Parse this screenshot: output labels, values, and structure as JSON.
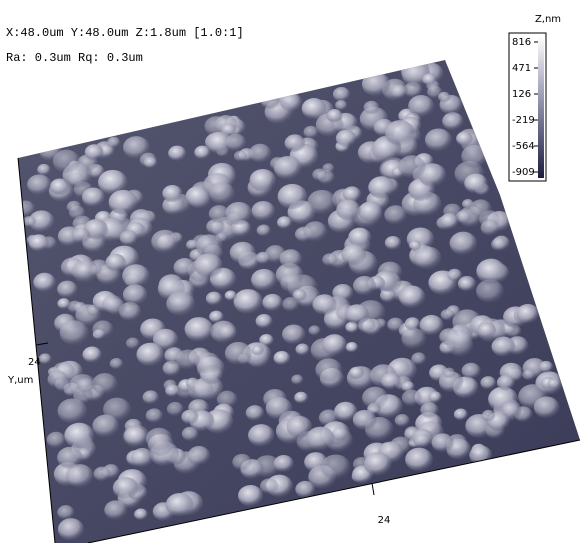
{
  "info": {
    "line1": "X:48.0um  Y:48.0um  Z:1.8um [1.0:1]",
    "line2": "Ra: 0.3um  Rq: 0.3um"
  },
  "colorbar": {
    "title": "Z,nm",
    "ticks": [
      "816",
      "471",
      "126",
      "-219",
      "-564",
      "-909"
    ]
  },
  "y_axis": {
    "tick": "24",
    "label": "Y,um"
  },
  "x_axis": {
    "tick": "24"
  }
}
